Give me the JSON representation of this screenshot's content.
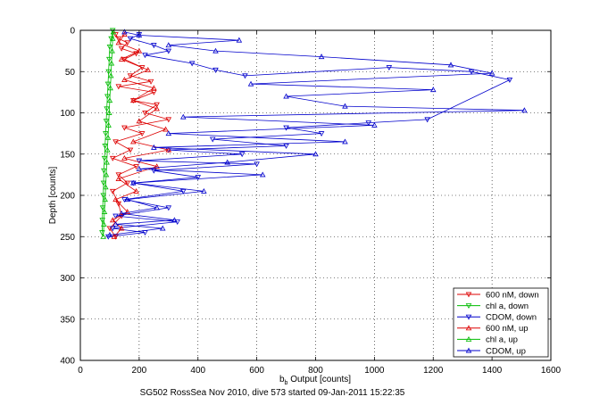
{
  "chart_data": {
    "type": "scatter",
    "title": "",
    "xlabel_main": "b",
    "xlabel_sub": "b",
    "xlabel_rest": " Output [counts]",
    "ylabel": "Depth [counts]",
    "caption": "SG502 RossSea Nov 2010, dive 573 started 09-Jan-2011 15:22:35",
    "xlim": [
      0,
      1600
    ],
    "ylim": [
      0,
      400
    ],
    "y_reversed": true,
    "grid": true,
    "legend_position": "bottom-right",
    "xticks": [
      0,
      200,
      400,
      600,
      800,
      1000,
      1200,
      1400,
      1600
    ],
    "yticks": [
      0,
      50,
      100,
      150,
      200,
      250,
      300,
      350,
      400
    ],
    "series": [
      {
        "name": "600 nM, down",
        "color": "#dd0000",
        "marker": "triangle-down",
        "line": true,
        "points": [
          [
            120,
            5
          ],
          [
            130,
            10
          ],
          [
            160,
            15
          ],
          [
            140,
            22
          ],
          [
            190,
            28
          ],
          [
            150,
            35
          ],
          [
            210,
            45
          ],
          [
            170,
            55
          ],
          [
            240,
            62
          ],
          [
            130,
            68
          ],
          [
            250,
            75
          ],
          [
            180,
            85
          ],
          [
            260,
            90
          ],
          [
            220,
            100
          ],
          [
            300,
            108
          ],
          [
            150,
            118
          ],
          [
            210,
            125
          ],
          [
            120,
            135
          ],
          [
            170,
            145
          ],
          [
            110,
            155
          ],
          [
            190,
            165
          ],
          [
            130,
            175
          ],
          [
            160,
            185
          ],
          [
            110,
            195
          ],
          [
            130,
            210
          ],
          [
            140,
            225
          ],
          [
            100,
            240
          ],
          [
            120,
            250
          ]
        ]
      },
      {
        "name": "chl a, down",
        "color": "#00bb00",
        "marker": "triangle-down",
        "line": true,
        "points": [
          [
            110,
            0
          ],
          [
            105,
            10
          ],
          [
            100,
            20
          ],
          [
            98,
            35
          ],
          [
            96,
            50
          ],
          [
            94,
            65
          ],
          [
            92,
            80
          ],
          [
            90,
            95
          ],
          [
            88,
            110
          ],
          [
            86,
            125
          ],
          [
            84,
            140
          ],
          [
            82,
            155
          ],
          [
            80,
            170
          ],
          [
            79,
            185
          ],
          [
            78,
            200
          ],
          [
            76,
            215
          ],
          [
            75,
            230
          ],
          [
            74,
            245
          ]
        ]
      },
      {
        "name": "CDOM, down",
        "color": "#0000cc",
        "marker": "triangle-down",
        "line": true,
        "points": [
          [
            200,
            5
          ],
          [
            170,
            10
          ],
          [
            250,
            18
          ],
          [
            300,
            25
          ],
          [
            220,
            30
          ],
          [
            380,
            40
          ],
          [
            460,
            48
          ],
          [
            560,
            55
          ],
          [
            1050,
            45
          ],
          [
            1330,
            50
          ],
          [
            1460,
            60
          ],
          [
            1180,
            108
          ],
          [
            980,
            112
          ],
          [
            700,
            118
          ],
          [
            820,
            125
          ],
          [
            450,
            132
          ],
          [
            700,
            140
          ],
          [
            300,
            145
          ],
          [
            550,
            150
          ],
          [
            200,
            158
          ],
          [
            600,
            162
          ],
          [
            250,
            170
          ],
          [
            400,
            178
          ],
          [
            180,
            185
          ],
          [
            350,
            195
          ],
          [
            150,
            205
          ],
          [
            300,
            215
          ],
          [
            120,
            225
          ],
          [
            330,
            232
          ],
          [
            110,
            240
          ],
          [
            220,
            245
          ],
          [
            95,
            250
          ]
        ]
      },
      {
        "name": "600 nM, up",
        "color": "#dd0000",
        "marker": "triangle-up",
        "line": true,
        "points": [
          [
            115,
            250
          ],
          [
            140,
            240
          ],
          [
            110,
            230
          ],
          [
            160,
            220
          ],
          [
            120,
            205
          ],
          [
            190,
            195
          ],
          [
            130,
            180
          ],
          [
            260,
            165
          ],
          [
            150,
            155
          ],
          [
            300,
            145
          ],
          [
            180,
            135
          ],
          [
            290,
            120
          ],
          [
            200,
            110
          ],
          [
            260,
            95
          ],
          [
            180,
            85
          ],
          [
            250,
            70
          ],
          [
            150,
            60
          ],
          [
            230,
            48
          ],
          [
            140,
            35
          ],
          [
            200,
            25
          ],
          [
            130,
            15
          ],
          [
            150,
            5
          ]
        ]
      },
      {
        "name": "chl a, up",
        "color": "#00bb00",
        "marker": "triangle-up",
        "line": true,
        "points": [
          [
            78,
            250
          ],
          [
            80,
            235
          ],
          [
            82,
            220
          ],
          [
            84,
            205
          ],
          [
            86,
            190
          ],
          [
            88,
            175
          ],
          [
            90,
            160
          ],
          [
            92,
            145
          ],
          [
            94,
            130
          ],
          [
            96,
            115
          ],
          [
            98,
            100
          ],
          [
            100,
            85
          ],
          [
            102,
            70
          ],
          [
            104,
            55
          ],
          [
            106,
            40
          ],
          [
            108,
            25
          ],
          [
            110,
            10
          ],
          [
            112,
            2
          ]
        ]
      },
      {
        "name": "CDOM, up",
        "color": "#0000cc",
        "marker": "triangle-up",
        "line": true,
        "points": [
          [
            100,
            248
          ],
          [
            280,
            240
          ],
          [
            120,
            235
          ],
          [
            320,
            230
          ],
          [
            140,
            222
          ],
          [
            260,
            215
          ],
          [
            160,
            205
          ],
          [
            420,
            195
          ],
          [
            180,
            185
          ],
          [
            620,
            175
          ],
          [
            200,
            168
          ],
          [
            500,
            160
          ],
          [
            800,
            150
          ],
          [
            250,
            142
          ],
          [
            900,
            135
          ],
          [
            300,
            125
          ],
          [
            1000,
            115
          ],
          [
            350,
            105
          ],
          [
            1510,
            97
          ],
          [
            900,
            92
          ],
          [
            700,
            80
          ],
          [
            1200,
            72
          ],
          [
            580,
            65
          ],
          [
            1400,
            52
          ],
          [
            1260,
            42
          ],
          [
            820,
            32
          ],
          [
            460,
            25
          ],
          [
            300,
            18
          ],
          [
            540,
            12
          ],
          [
            200,
            6
          ],
          [
            150,
            2
          ]
        ]
      }
    ]
  }
}
